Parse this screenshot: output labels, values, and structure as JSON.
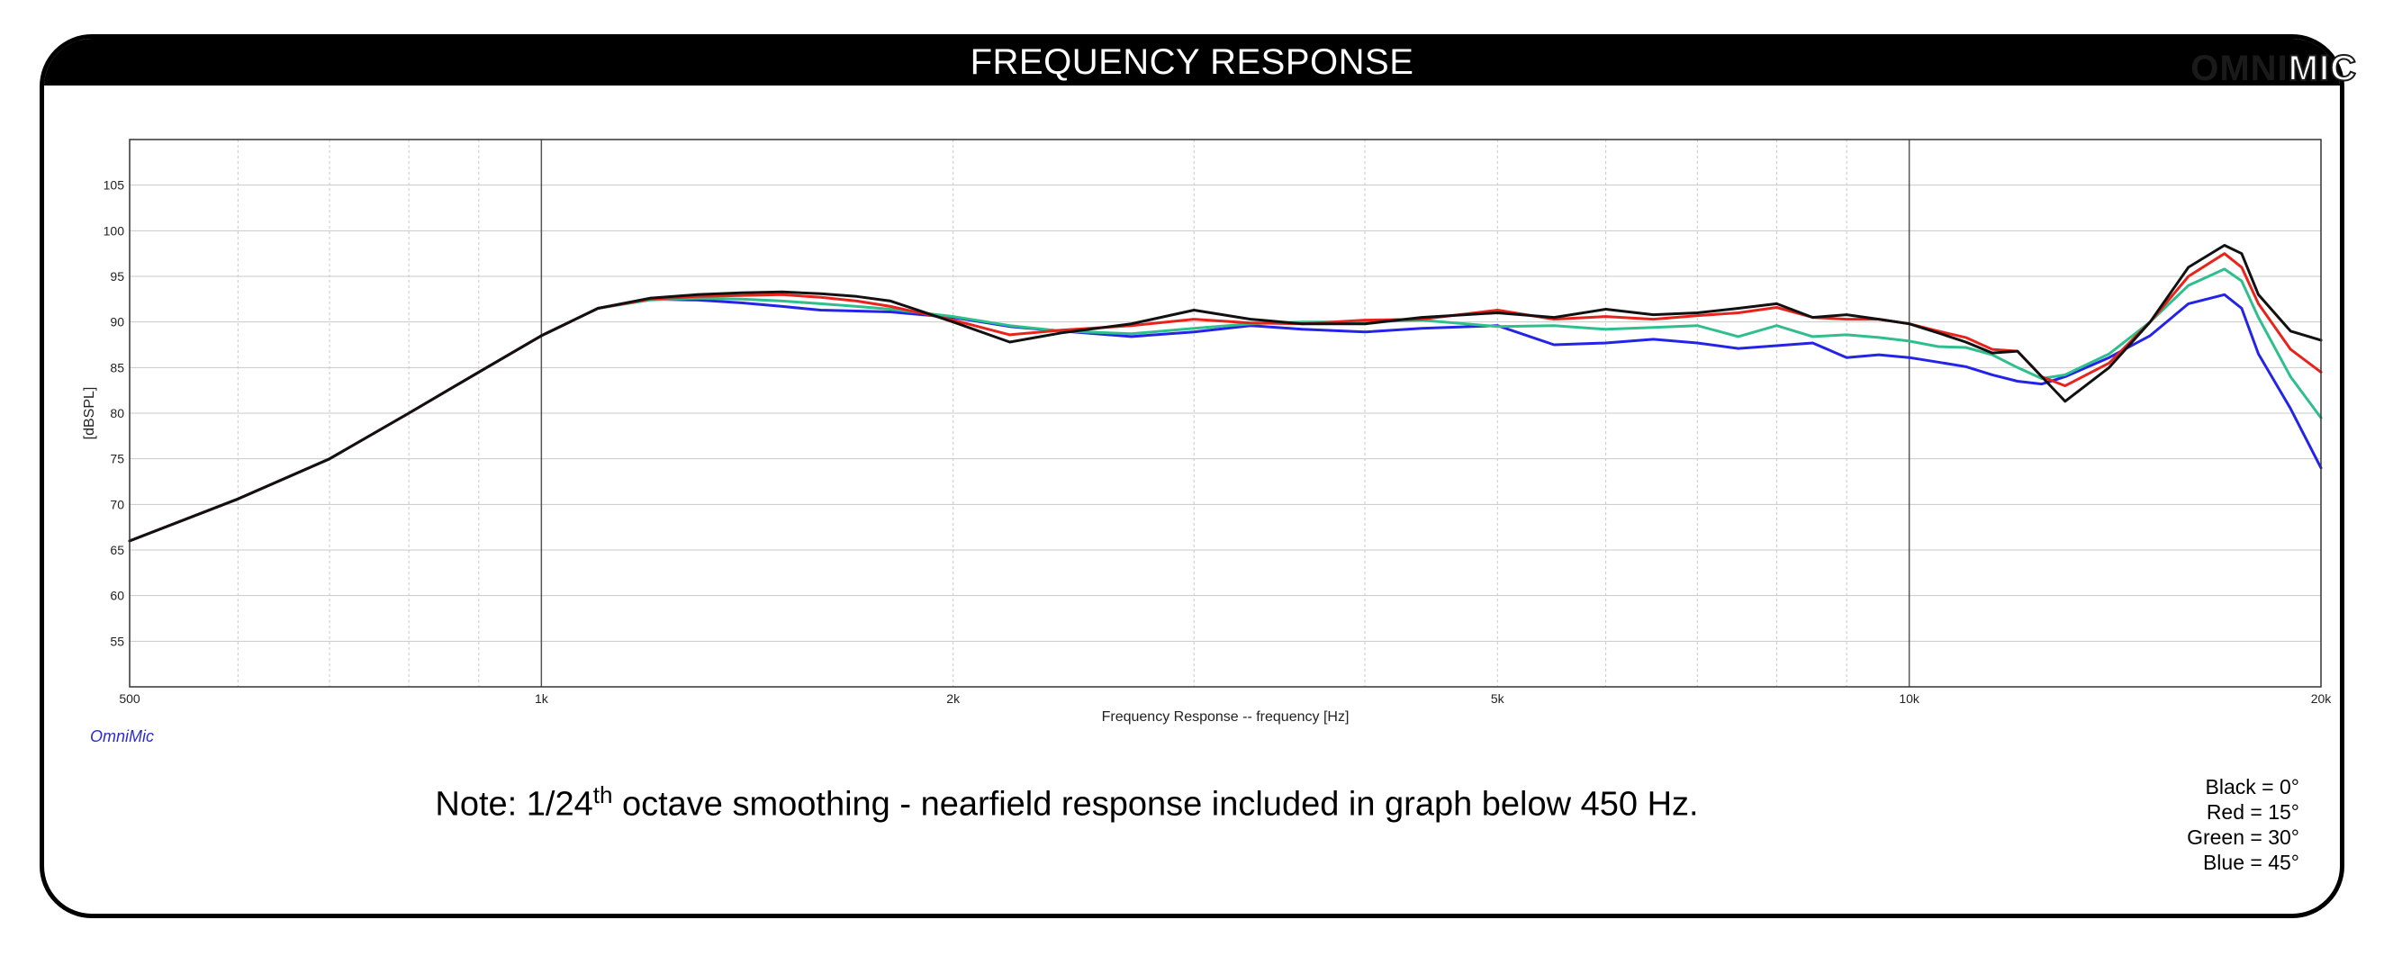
{
  "title": "FREQUENCY RESPONSE",
  "logo": {
    "part1": "OMNI",
    "part2": "MIC"
  },
  "brand_caption": "OmniMic",
  "note": {
    "prefix": "Note: 1/24",
    "sup": "th",
    "suffix": " octave smoothing - nearfield response included in graph below 450 Hz."
  },
  "legend": [
    "Black = 0°",
    "Red = 15°",
    "Green = 30°",
    "Blue = 45°"
  ],
  "colors": {
    "black": "#111111",
    "red": "#e8231c",
    "green": "#2fbf8c",
    "blue": "#2424e8"
  },
  "chart_data": {
    "type": "line",
    "title": "",
    "xlabel": "Frequency Response -- frequency [Hz]",
    "ylabel": "[dBSPL]",
    "xscale": "log",
    "xlim": [
      500,
      20000
    ],
    "ylim": [
      50,
      110
    ],
    "yticks": [
      55,
      60,
      65,
      70,
      75,
      80,
      85,
      90,
      95,
      100,
      105
    ],
    "xtick_labels": [
      {
        "v": 500,
        "label": "500"
      },
      {
        "v": 1000,
        "label": "1k"
      },
      {
        "v": 2000,
        "label": "2k"
      },
      {
        "v": 5000,
        "label": "5k"
      },
      {
        "v": 10000,
        "label": "10k"
      },
      {
        "v": 20000,
        "label": "20k"
      }
    ],
    "grid": true,
    "series": [
      {
        "name": "Black = 0°",
        "color": "#111111",
        "x": [
          500,
          600,
          700,
          800,
          900,
          1000,
          1100,
          1200,
          1300,
          1400,
          1500,
          1600,
          1700,
          1800,
          2000,
          2200,
          2400,
          2700,
          3000,
          3300,
          3600,
          4000,
          4400,
          5000,
          5500,
          6000,
          6500,
          7000,
          7500,
          8000,
          8500,
          9000,
          9500,
          10000,
          10500,
          11000,
          11500,
          12000,
          12500,
          13000,
          14000,
          15000,
          16000,
          17000,
          17500,
          18000,
          19000,
          20000
        ],
        "y": [
          66,
          70.6,
          75,
          80,
          84.5,
          88.5,
          91.5,
          92.6,
          93,
          93.2,
          93.3,
          93.1,
          92.8,
          92.3,
          90,
          87.8,
          88.8,
          89.8,
          91.3,
          90.3,
          89.8,
          89.8,
          90.5,
          91,
          90.5,
          91.4,
          90.8,
          91,
          91.5,
          92,
          90.5,
          90.8,
          90.3,
          89.8,
          88.8,
          87.8,
          86.6,
          86.8,
          84,
          81.3,
          85,
          90,
          96,
          98.4,
          97.5,
          93,
          89,
          88
        ]
      },
      {
        "name": "Red = 15°",
        "color": "#e8231c",
        "x": [
          500,
          600,
          700,
          800,
          900,
          1000,
          1100,
          1200,
          1300,
          1400,
          1500,
          1600,
          1700,
          1800,
          2000,
          2200,
          2400,
          2700,
          3000,
          3300,
          3600,
          4000,
          4400,
          5000,
          5500,
          6000,
          6500,
          7000,
          7500,
          8000,
          8500,
          9000,
          9500,
          10000,
          10500,
          11000,
          11500,
          12000,
          12500,
          13000,
          14000,
          15000,
          16000,
          17000,
          17500,
          18000,
          19000,
          20000
        ],
        "y": [
          66,
          70.6,
          75,
          80,
          84.5,
          88.5,
          91.5,
          92.5,
          92.8,
          92.9,
          93,
          92.7,
          92.3,
          91.7,
          90.2,
          88.6,
          89.1,
          89.6,
          90.3,
          89.9,
          89.8,
          90.2,
          90.3,
          91.3,
          90.3,
          90.6,
          90.3,
          90.7,
          91,
          91.6,
          90.5,
          90.3,
          90.3,
          89.8,
          89,
          88.3,
          87,
          86.8,
          84,
          83,
          85.5,
          90,
          95,
          97.5,
          96,
          92,
          87,
          84.5
        ]
      },
      {
        "name": "Green = 30°",
        "color": "#2fbf8c",
        "x": [
          500,
          600,
          700,
          800,
          900,
          1000,
          1100,
          1200,
          1300,
          1400,
          1500,
          1600,
          1700,
          1800,
          2000,
          2200,
          2400,
          2700,
          3000,
          3300,
          3600,
          4000,
          4400,
          5000,
          5500,
          6000,
          6500,
          7000,
          7500,
          8000,
          8500,
          9000,
          9500,
          10000,
          10500,
          11000,
          11500,
          12000,
          12500,
          13000,
          14000,
          15000,
          16000,
          17000,
          17500,
          18000,
          19000,
          20000
        ],
        "y": [
          66,
          70.6,
          75,
          80,
          84.5,
          88.5,
          91.5,
          92.4,
          92.6,
          92.5,
          92.3,
          92,
          91.7,
          91.4,
          90.6,
          89.6,
          89,
          88.7,
          89.3,
          89.8,
          90,
          90,
          90.2,
          89.5,
          89.6,
          89.2,
          89.4,
          89.6,
          88.4,
          89.6,
          88.4,
          88.6,
          88.3,
          87.9,
          87.3,
          87.2,
          86.4,
          85,
          83.8,
          84.2,
          86.5,
          90,
          94,
          95.8,
          94.5,
          90.5,
          84,
          79.5
        ]
      },
      {
        "name": "Blue = 45°",
        "color": "#2424e8",
        "x": [
          500,
          600,
          700,
          800,
          900,
          1000,
          1100,
          1200,
          1300,
          1400,
          1500,
          1600,
          1700,
          1800,
          2000,
          2200,
          2400,
          2700,
          3000,
          3300,
          3600,
          4000,
          4400,
          5000,
          5500,
          6000,
          6500,
          7000,
          7500,
          8000,
          8500,
          9000,
          9500,
          10000,
          10500,
          11000,
          11500,
          12000,
          12500,
          13000,
          14000,
          15000,
          16000,
          17000,
          17500,
          18000,
          19000,
          20000
        ],
        "y": [
          66,
          70.6,
          75,
          80,
          84.5,
          88.5,
          91.5,
          92.5,
          92.4,
          92.1,
          91.7,
          91.3,
          91.2,
          91.1,
          90.5,
          89.5,
          89,
          88.4,
          88.9,
          89.6,
          89.2,
          88.9,
          89.3,
          89.6,
          87.5,
          87.7,
          88.1,
          87.7,
          87.1,
          87.4,
          87.7,
          86.1,
          86.4,
          86.1,
          85.6,
          85.1,
          84.2,
          83.5,
          83.2,
          84,
          86.1,
          88.5,
          92,
          93,
          91.5,
          86.5,
          80.5,
          74
        ]
      }
    ]
  }
}
